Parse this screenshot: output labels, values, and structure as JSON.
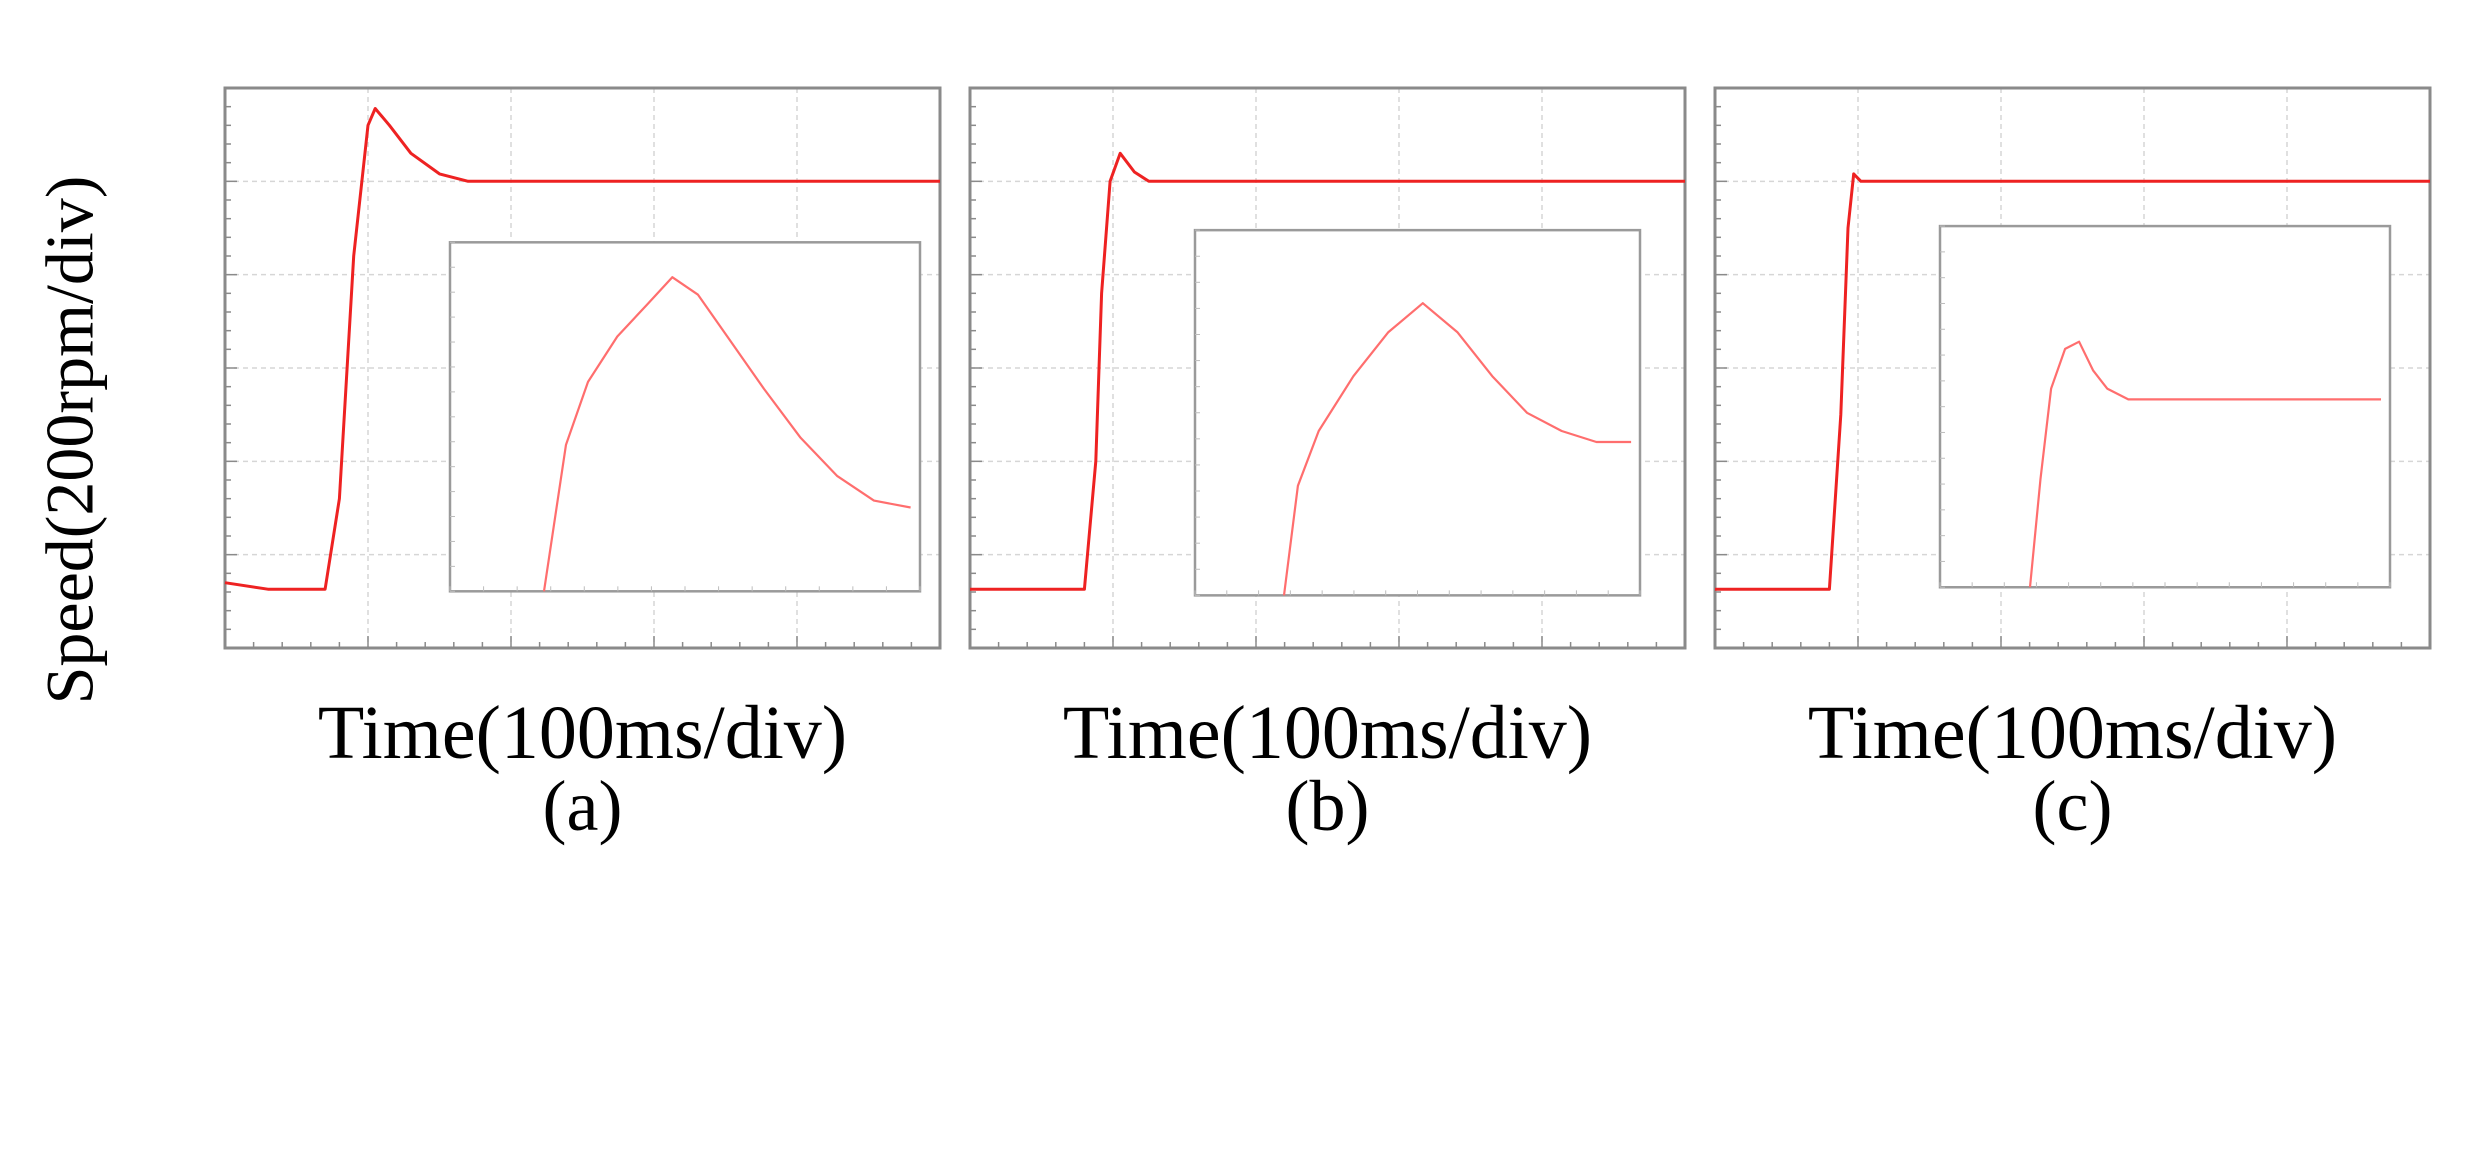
{
  "figure": {
    "ylabel": "Speed(200rpm/div)",
    "colors": {
      "trace": "#ee2222",
      "inset_trace": "#ff6e6e",
      "grid": "#d6d6d6",
      "frame": "#8a8a8a"
    }
  },
  "chart_data": [
    {
      "type": "line",
      "panel_label": "(a)",
      "xlabel": "Time(100ms/div)",
      "ylabel": "Speed(200rpm/div)",
      "x_unit": "div (100 ms/div)",
      "y_unit": "div (200 rpm/div)",
      "xlim": [
        0,
        5
      ],
      "ylim": [
        0,
        6
      ],
      "grid": true,
      "series": [
        {
          "x": [
            0,
            0.3,
            0.55,
            0.7,
            0.8,
            0.9,
            1.0,
            1.05,
            1.15,
            1.3,
            1.5,
            1.7,
            2.0,
            3.0,
            4.0,
            5.0
          ],
          "y": [
            0.7,
            0.63,
            0.63,
            0.63,
            1.6,
            4.2,
            5.6,
            5.78,
            5.6,
            5.3,
            5.08,
            5.0,
            5.0,
            5.0,
            5.0,
            5.0
          ]
        }
      ],
      "inset": {
        "series": [
          {
            "x": [
              0.0,
              0.06,
              0.12,
              0.2,
              0.28,
              0.35,
              0.42,
              0.5,
              0.6,
              0.7,
              0.8,
              0.9,
              1.0
            ],
            "y": [
              0.0,
              0.42,
              0.6,
              0.73,
              0.82,
              0.9,
              0.85,
              0.73,
              0.58,
              0.44,
              0.33,
              0.26,
              0.24
            ]
          }
        ]
      }
    },
    {
      "type": "line",
      "panel_label": "(b)",
      "xlabel": "Time(100ms/div)",
      "ylabel": "Speed(200rpm/div)",
      "x_unit": "div (100 ms/div)",
      "y_unit": "div (200 rpm/div)",
      "xlim": [
        0,
        5
      ],
      "ylim": [
        0,
        6
      ],
      "grid": true,
      "series": [
        {
          "x": [
            0,
            0.5,
            0.8,
            0.88,
            0.92,
            0.98,
            1.05,
            1.15,
            1.25,
            2.0,
            3.0,
            4.0,
            5.0
          ],
          "y": [
            0.63,
            0.63,
            0.63,
            2.0,
            3.8,
            5.0,
            5.3,
            5.1,
            5.0,
            5.0,
            5.0,
            5.0,
            5.0
          ]
        }
      ],
      "inset": {
        "series": [
          {
            "x": [
              0.0,
              0.04,
              0.1,
              0.2,
              0.3,
              0.4,
              0.5,
              0.6,
              0.7,
              0.8,
              0.9,
              1.0
            ],
            "y": [
              0.0,
              0.3,
              0.45,
              0.6,
              0.72,
              0.8,
              0.72,
              0.6,
              0.5,
              0.45,
              0.42,
              0.42
            ]
          }
        ]
      }
    },
    {
      "type": "line",
      "panel_label": "(c)",
      "xlabel": "Time(100ms/div)",
      "ylabel": "Speed(200rpm/div)",
      "x_unit": "div (100 ms/div)",
      "y_unit": "div (200 rpm/div)",
      "xlim": [
        0,
        5
      ],
      "ylim": [
        0,
        6
      ],
      "grid": true,
      "series": [
        {
          "x": [
            0,
            0.5,
            0.8,
            0.88,
            0.93,
            0.97,
            1.02,
            1.1,
            2.0,
            3.0,
            4.0,
            5.0
          ],
          "y": [
            0.63,
            0.63,
            0.63,
            2.5,
            4.5,
            5.08,
            5.0,
            5.0,
            5.0,
            5.0,
            5.0,
            5.0
          ]
        }
      ],
      "inset": {
        "series": [
          {
            "x": [
              0.0,
              0.03,
              0.06,
              0.1,
              0.14,
              0.18,
              0.22,
              0.28,
              0.4,
              0.6,
              0.8,
              1.0
            ],
            "y": [
              0.0,
              0.3,
              0.55,
              0.66,
              0.68,
              0.6,
              0.55,
              0.52,
              0.52,
              0.52,
              0.52,
              0.52
            ]
          }
        ]
      }
    }
  ]
}
